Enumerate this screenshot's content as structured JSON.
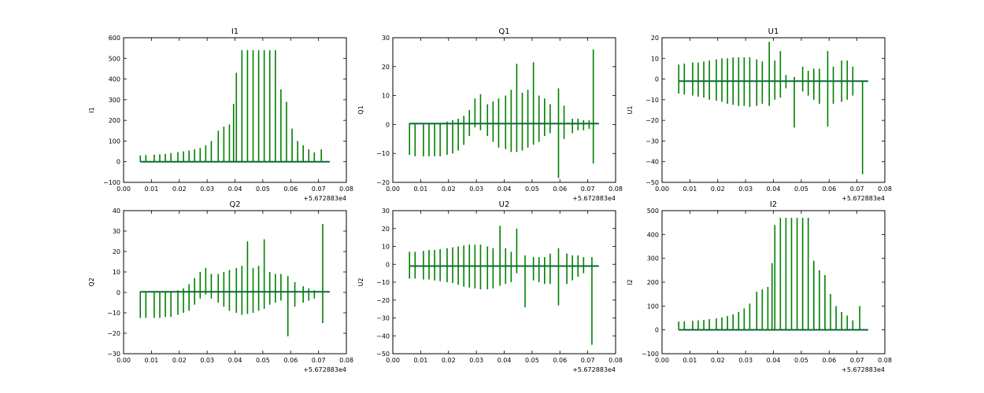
{
  "figure": {
    "background": "#ffffff",
    "series_colors": [
      "#1f3f9e",
      "#008000"
    ]
  },
  "chart_data": [
    {
      "type": "line",
      "title": "I1",
      "ylabel": "I1",
      "xlim": [
        0.0,
        0.08
      ],
      "ylim": [
        -100,
        600
      ],
      "xticks": [
        "0.00",
        "0.01",
        "0.02",
        "0.03",
        "0.04",
        "0.05",
        "0.06",
        "0.07",
        "0.08"
      ],
      "yticks": [
        "−100",
        "0",
        "100",
        "200",
        "300",
        "400",
        "500",
        "600"
      ],
      "x_offset_label": "+5.672883e4",
      "baseline": 0,
      "x_start": 0.006,
      "x_end": 0.074,
      "spikes": {
        "x": [
          0.006,
          0.008,
          0.011,
          0.013,
          0.015,
          0.017,
          0.0195,
          0.0215,
          0.0235,
          0.0255,
          0.0275,
          0.0295,
          0.0315,
          0.034,
          0.036,
          0.038,
          0.0395,
          0.0405,
          0.0425,
          0.0445,
          0.0465,
          0.0485,
          0.0505,
          0.0525,
          0.0545,
          0.0565,
          0.0585,
          0.0605,
          0.0625,
          0.0645,
          0.0665,
          0.0685,
          0.071
        ],
        "top": [
          30,
          32,
          34,
          36,
          38,
          42,
          46,
          50,
          54,
          60,
          66,
          80,
          100,
          150,
          170,
          180,
          280,
          430,
          540,
          540,
          540,
          540,
          540,
          540,
          540,
          350,
          290,
          160,
          100,
          80,
          60,
          45,
          60
        ],
        "bottom": [
          0,
          0,
          0,
          0,
          0,
          0,
          0,
          0,
          0,
          0,
          0,
          0,
          0,
          0,
          0,
          0,
          0,
          0,
          0,
          0,
          0,
          0,
          0,
          0,
          0,
          0,
          0,
          0,
          0,
          0,
          0,
          0,
          0
        ]
      },
      "spike_color": "#008000",
      "line_color": "#1f3f9e"
    },
    {
      "type": "line",
      "title": "Q1",
      "ylabel": "Q1",
      "xlim": [
        0.0,
        0.08
      ],
      "ylim": [
        -20,
        30
      ],
      "xticks": [
        "0.00",
        "0.01",
        "0.02",
        "0.03",
        "0.04",
        "0.05",
        "0.06",
        "0.07",
        "0.08"
      ],
      "yticks": [
        "−20",
        "−10",
        "0",
        "10",
        "20",
        "30"
      ],
      "x_offset_label": "+5.672883e4",
      "baseline": 0.3,
      "x_start": 0.006,
      "x_end": 0.074,
      "spikes": {
        "x": [
          0.006,
          0.008,
          0.011,
          0.013,
          0.015,
          0.017,
          0.0195,
          0.0215,
          0.0235,
          0.0255,
          0.0275,
          0.0295,
          0.0315,
          0.034,
          0.036,
          0.038,
          0.0405,
          0.0425,
          0.0445,
          0.0465,
          0.0485,
          0.0505,
          0.0525,
          0.0545,
          0.0565,
          0.0595,
          0.0615,
          0.0645,
          0.0665,
          0.0685,
          0.0705,
          0.072
        ],
        "top": [
          0.5,
          0.5,
          0.5,
          0.5,
          0.5,
          0.5,
          1,
          1.5,
          2,
          3,
          5,
          9,
          10.5,
          7,
          8,
          9,
          10,
          12,
          21,
          11,
          12,
          21.5,
          10,
          9,
          7,
          12.5,
          6.5,
          2,
          2,
          1.5,
          1.5,
          26
        ],
        "bottom": [
          -10.5,
          -11,
          -11,
          -11,
          -11,
          -11,
          -10.5,
          -10,
          -9,
          -7,
          -4,
          -1,
          -2,
          -4,
          -6,
          -8,
          -8.5,
          -9.5,
          -9.5,
          -9,
          -8,
          -7,
          -6,
          -4,
          -3,
          -18.5,
          -5,
          -3,
          -2,
          -2,
          -1.5,
          -13.5
        ]
      },
      "spike_color": "#008000",
      "line_color": "#1f3f9e"
    },
    {
      "type": "line",
      "title": "U1",
      "ylabel": "U1",
      "xlim": [
        0.0,
        0.08
      ],
      "ylim": [
        -50,
        20
      ],
      "xticks": [
        "0.00",
        "0.01",
        "0.02",
        "0.03",
        "0.04",
        "0.05",
        "0.06",
        "0.07",
        "0.08"
      ],
      "yticks": [
        "−50",
        "−40",
        "−30",
        "−20",
        "−10",
        "0",
        "10",
        "20"
      ],
      "x_offset_label": "+5.672883e4",
      "baseline": -1,
      "x_start": 0.006,
      "x_end": 0.074,
      "spikes": {
        "x": [
          0.006,
          0.008,
          0.011,
          0.013,
          0.015,
          0.017,
          0.0195,
          0.0215,
          0.0235,
          0.0255,
          0.0275,
          0.0295,
          0.0315,
          0.034,
          0.036,
          0.0385,
          0.0405,
          0.0425,
          0.0445,
          0.0475,
          0.0505,
          0.0525,
          0.0545,
          0.0565,
          0.0595,
          0.0615,
          0.0645,
          0.0665,
          0.0685,
          0.072
        ],
        "top": [
          7,
          7.5,
          8,
          8,
          8.5,
          9,
          9.5,
          10,
          10,
          10.5,
          10.5,
          10.5,
          10.5,
          9.5,
          8.5,
          18,
          9,
          13.5,
          2,
          1,
          6,
          4,
          5,
          5,
          13.5,
          6,
          9,
          9,
          6,
          -1
        ],
        "bottom": [
          -7,
          -7.5,
          -8,
          -8.5,
          -9,
          -10,
          -10.5,
          -11,
          -12,
          -12.5,
          -13,
          -13,
          -13.5,
          -13,
          -12,
          -13,
          -10,
          -9,
          -4.5,
          -23.5,
          -6,
          -8,
          -10,
          -12,
          -23,
          -12,
          -11,
          -10,
          -8,
          -46
        ]
      },
      "spike_color": "#008000",
      "line_color": "#1f3f9e"
    },
    {
      "type": "line",
      "title": "Q2",
      "ylabel": "Q2",
      "xlim": [
        0.0,
        0.08
      ],
      "ylim": [
        -30,
        40
      ],
      "xticks": [
        "0.00",
        "0.01",
        "0.02",
        "0.03",
        "0.04",
        "0.05",
        "0.06",
        "0.07",
        "0.08"
      ],
      "yticks": [
        "−30",
        "−20",
        "−10",
        "0",
        "10",
        "20",
        "30",
        "40"
      ],
      "x_offset_label": "+5.672883e4",
      "baseline": 0.3,
      "x_start": 0.006,
      "x_end": 0.074,
      "spikes": {
        "x": [
          0.006,
          0.008,
          0.011,
          0.013,
          0.015,
          0.017,
          0.0195,
          0.0215,
          0.0235,
          0.0255,
          0.0275,
          0.0295,
          0.0315,
          0.034,
          0.036,
          0.038,
          0.0405,
          0.0425,
          0.0445,
          0.0465,
          0.0485,
          0.0505,
          0.0525,
          0.0545,
          0.0565,
          0.059,
          0.0615,
          0.0645,
          0.0665,
          0.0685,
          0.0715
        ],
        "top": [
          0.5,
          0.5,
          0.5,
          0.5,
          0.5,
          0.5,
          1,
          2,
          4,
          7,
          10,
          12,
          9,
          9,
          10,
          11,
          12,
          13,
          25,
          12,
          13,
          26,
          10,
          9,
          9,
          8,
          5,
          3,
          2,
          1,
          33.5
        ],
        "bottom": [
          -12.5,
          -12.5,
          -12.5,
          -12.5,
          -12,
          -12,
          -11,
          -10,
          -9,
          -6,
          -3,
          -1,
          -3,
          -5,
          -7,
          -9,
          -10,
          -11,
          -10.5,
          -10,
          -9,
          -8,
          -6,
          -5,
          -4,
          -21.5,
          -7,
          -5,
          -4,
          -3,
          -15
        ]
      },
      "spike_color": "#008000",
      "line_color": "#1f3f9e"
    },
    {
      "type": "line",
      "title": "U2",
      "ylabel": "U2",
      "xlim": [
        0.0,
        0.08
      ],
      "ylim": [
        -50,
        30
      ],
      "xticks": [
        "0.00",
        "0.01",
        "0.02",
        "0.03",
        "0.04",
        "0.05",
        "0.06",
        "0.07",
        "0.08"
      ],
      "yticks": [
        "−50",
        "−40",
        "−30",
        "−20",
        "−10",
        "0",
        "10",
        "20",
        "30"
      ],
      "x_offset_label": "+5.672883e4",
      "baseline": -1,
      "x_start": 0.006,
      "x_end": 0.074,
      "spikes": {
        "x": [
          0.006,
          0.008,
          0.011,
          0.013,
          0.015,
          0.017,
          0.0195,
          0.0215,
          0.0235,
          0.0255,
          0.0275,
          0.0295,
          0.0315,
          0.034,
          0.036,
          0.0385,
          0.0405,
          0.0425,
          0.0445,
          0.0475,
          0.0505,
          0.0525,
          0.0545,
          0.0565,
          0.0595,
          0.0625,
          0.0645,
          0.0665,
          0.0685,
          0.0715
        ],
        "top": [
          7,
          7,
          7.5,
          8,
          8,
          8.5,
          9,
          9.5,
          10,
          10.5,
          11,
          11,
          11,
          10,
          9,
          21.5,
          9,
          7,
          20,
          5,
          4,
          4,
          4,
          6,
          9,
          6,
          5,
          5,
          4,
          4
        ],
        "bottom": [
          -8,
          -8,
          -8.5,
          -8.5,
          -9,
          -9.5,
          -10,
          -10.5,
          -11.5,
          -12.5,
          -13,
          -13.5,
          -14,
          -14,
          -13.5,
          -12,
          -11,
          -10,
          -5,
          -24,
          -9,
          -10,
          -11,
          -11,
          -23,
          -11,
          -9,
          -7,
          -5,
          -45
        ]
      },
      "spike_color": "#008000",
      "line_color": "#1f3f9e"
    },
    {
      "type": "line",
      "title": "I2",
      "ylabel": "I2",
      "xlim": [
        0.0,
        0.08
      ],
      "ylim": [
        -100,
        500
      ],
      "xticks": [
        "0.00",
        "0.01",
        "0.02",
        "0.03",
        "0.04",
        "0.05",
        "0.06",
        "0.07",
        "0.08"
      ],
      "yticks": [
        "−100",
        "0",
        "100",
        "200",
        "300",
        "400",
        "500"
      ],
      "x_offset_label": "+5.672883e4",
      "baseline": 0,
      "x_start": 0.006,
      "x_end": 0.074,
      "spikes": {
        "x": [
          0.006,
          0.008,
          0.011,
          0.013,
          0.015,
          0.017,
          0.0195,
          0.0215,
          0.0235,
          0.0255,
          0.0275,
          0.0295,
          0.0315,
          0.034,
          0.036,
          0.038,
          0.0395,
          0.0405,
          0.0425,
          0.0445,
          0.0465,
          0.0485,
          0.0505,
          0.0525,
          0.0545,
          0.0565,
          0.0585,
          0.0605,
          0.0625,
          0.0645,
          0.0665,
          0.0685,
          0.071
        ],
        "top": [
          35,
          36,
          38,
          40,
          42,
          45,
          48,
          52,
          58,
          65,
          75,
          90,
          110,
          160,
          170,
          180,
          280,
          440,
          470,
          470,
          470,
          470,
          470,
          470,
          290,
          250,
          230,
          150,
          100,
          75,
          60,
          40,
          100
        ],
        "bottom": [
          0,
          0,
          0,
          0,
          0,
          0,
          0,
          0,
          0,
          0,
          0,
          0,
          0,
          0,
          0,
          0,
          0,
          0,
          0,
          0,
          0,
          0,
          0,
          0,
          0,
          0,
          0,
          0,
          0,
          0,
          0,
          0,
          0
        ]
      },
      "spike_color": "#008000",
      "line_color": "#1f3f9e"
    }
  ]
}
